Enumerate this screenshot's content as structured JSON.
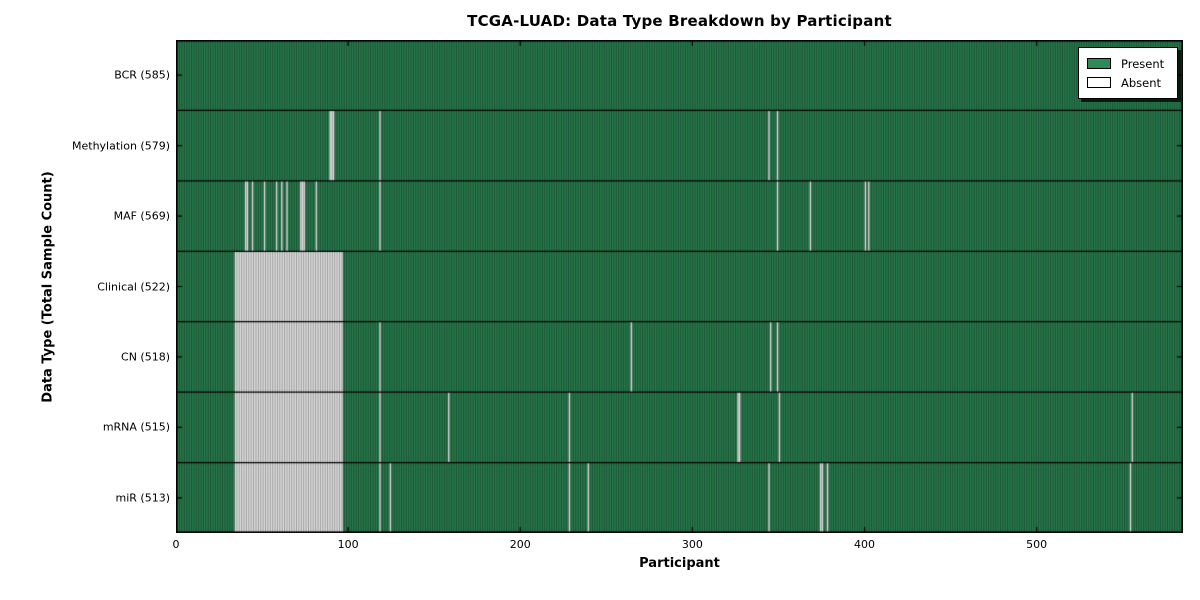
{
  "title": "TCGA-LUAD: Data Type Breakdown by Participant",
  "axes": {
    "xlabel": "Participant",
    "ylabel": "Data Type (Total Sample Count)",
    "x_ticks": [
      0,
      100,
      200,
      300,
      400,
      500
    ]
  },
  "legend": {
    "items": [
      {
        "label": "Present",
        "color_key": "present"
      },
      {
        "label": "Absent",
        "color_key": "absent"
      }
    ]
  },
  "colors": {
    "present": "#2e8b57",
    "absent": "#ffffff",
    "edge": "#000000"
  },
  "chart_data": {
    "type": "heatmap",
    "title": "TCGA-LUAD: Data Type Breakdown by Participant",
    "xlabel": "Participant",
    "ylabel": "Data Type (Total Sample Count)",
    "x_range": [
      0,
      585
    ],
    "x_ticks": [
      0,
      100,
      200,
      300,
      400,
      500
    ],
    "n_participants": 585,
    "grid": false,
    "legend_position": "upper right",
    "cell_states": {
      "present": "green",
      "absent": "white"
    },
    "rows": [
      {
        "label": "BCR (585)",
        "data_type": "BCR",
        "total": 585,
        "absent_count": 0,
        "absent_ranges": []
      },
      {
        "label": "Methylation (579)",
        "data_type": "Methylation",
        "total": 579,
        "absent_count": 6,
        "absent_ranges": [
          [
            89,
            91
          ],
          [
            118,
            118
          ],
          [
            344,
            344
          ],
          [
            349,
            349
          ]
        ]
      },
      {
        "label": "MAF (569)",
        "data_type": "MAF",
        "total": 569,
        "absent_count": 16,
        "absent_ranges": [
          [
            40,
            41
          ],
          [
            44,
            44
          ],
          [
            51,
            51
          ],
          [
            58,
            58
          ],
          [
            61,
            61
          ],
          [
            64,
            64
          ],
          [
            72,
            74
          ],
          [
            81,
            81
          ],
          [
            118,
            118
          ],
          [
            349,
            349
          ],
          [
            368,
            368
          ],
          [
            400,
            400
          ],
          [
            402,
            402
          ]
        ]
      },
      {
        "label": "Clinical (522)",
        "data_type": "Clinical",
        "total": 522,
        "absent_count": 63,
        "absent_ranges": [
          [
            34,
            96
          ]
        ]
      },
      {
        "label": "CN (518)",
        "data_type": "CN",
        "total": 518,
        "absent_count": 67,
        "absent_ranges": [
          [
            34,
            96
          ],
          [
            118,
            118
          ],
          [
            264,
            264
          ],
          [
            345,
            345
          ],
          [
            349,
            349
          ]
        ]
      },
      {
        "label": "mRNA (515)",
        "data_type": "mRNA",
        "total": 515,
        "absent_count": 70,
        "absent_ranges": [
          [
            34,
            96
          ],
          [
            118,
            118
          ],
          [
            158,
            158
          ],
          [
            228,
            228
          ],
          [
            326,
            327
          ],
          [
            350,
            350
          ],
          [
            555,
            555
          ]
        ]
      },
      {
        "label": "miR (513)",
        "data_type": "miR",
        "total": 513,
        "absent_count": 72,
        "absent_ranges": [
          [
            34,
            96
          ],
          [
            118,
            118
          ],
          [
            124,
            124
          ],
          [
            228,
            228
          ],
          [
            239,
            239
          ],
          [
            344,
            344
          ],
          [
            374,
            375
          ],
          [
            378,
            378
          ],
          [
            554,
            554
          ]
        ]
      }
    ]
  }
}
